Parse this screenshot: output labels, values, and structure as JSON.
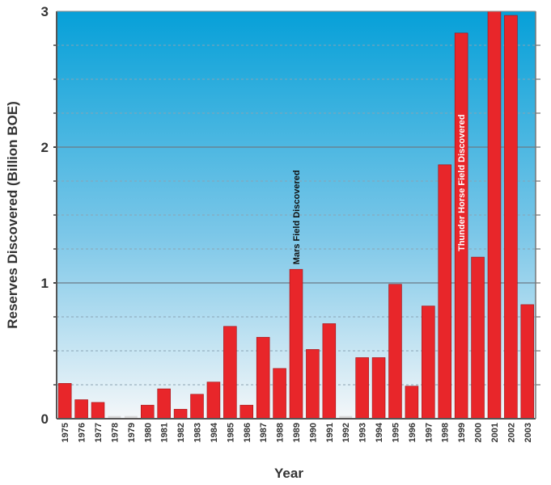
{
  "chart_data": {
    "type": "bar",
    "title": "",
    "xlabel": "Year",
    "ylabel": "Reserves Discovered  (Billion BOE)",
    "ylim": [
      0,
      3
    ],
    "yticks": [
      "0",
      "1",
      "2",
      "3"
    ],
    "grid": "on",
    "categories": [
      "1975",
      "1976",
      "1977",
      "1978",
      "1979",
      "1980",
      "1981",
      "1982",
      "1983",
      "1984",
      "1985",
      "1986",
      "1987",
      "1988",
      "1989",
      "1990",
      "1991",
      "1992",
      "1993",
      "1994",
      "1995",
      "1996",
      "1997",
      "1998",
      "1999",
      "2000",
      "2001",
      "2002",
      "2003"
    ],
    "values": [
      0.26,
      0.14,
      0.12,
      0.02,
      0.02,
      0.1,
      0.22,
      0.07,
      0.18,
      0.27,
      0.68,
      0.1,
      0.6,
      0.37,
      1.1,
      0.51,
      0.7,
      0.02,
      0.45,
      0.45,
      0.99,
      0.24,
      0.83,
      1.87,
      2.84,
      1.19,
      3.0,
      2.97,
      0.84
    ],
    "annotations": [
      {
        "category": "1989",
        "text": "Mars Field Discovered",
        "placement": "above-bar"
      },
      {
        "category": "1999",
        "text": "Thunder Horse Field Discovered",
        "placement": "inside-bar"
      }
    ],
    "colors": {
      "bar": "#e8262a",
      "bar_faint": "#d9d9d9",
      "bg_top": "#06a0d8",
      "bg_bottom": "#f4f7f9"
    }
  }
}
